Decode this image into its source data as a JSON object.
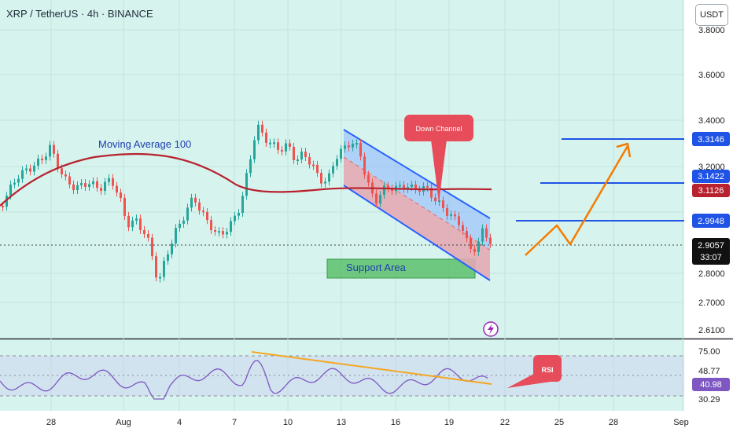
{
  "header": {
    "title": "XRP / TetherUS · 4h · BINANCE"
  },
  "currency_button": "USDT",
  "price_axis": {
    "ticks": [
      "3.8000",
      "3.6000",
      "3.4000",
      "3.2000",
      "2.8000",
      "2.7000",
      "2.6100"
    ],
    "badges": [
      {
        "label": "3.3146",
        "color": "#1e53e5"
      },
      {
        "label": "3.1422",
        "color": "#1e53e5"
      },
      {
        "label": "3.1126",
        "color": "#b7222e"
      },
      {
        "label": "2.9948",
        "color": "#1e53e5"
      },
      {
        "label": "2.9057",
        "color": "#111111"
      },
      {
        "label": "33:07",
        "color": "#111111"
      }
    ]
  },
  "rsi_axis": {
    "ticks": [
      "75.00",
      "48.77",
      "30.29"
    ],
    "badge": {
      "label": "40.98",
      "color": "#7e57c2"
    }
  },
  "time_axis": {
    "labels": [
      "28",
      "Aug",
      "4",
      "7",
      "10",
      "13",
      "16",
      "19",
      "22",
      "25",
      "28",
      "Sep"
    ]
  },
  "annotations": {
    "moving_average": "Moving Average 100",
    "down_channel": "Down Channel",
    "support_area": "Support Area",
    "rsi": "RSI"
  },
  "colors": {
    "up": "#26a69a",
    "down": "#ef5350",
    "ma": "#b7222e",
    "channel": "#2962ff",
    "projection": "#f57c00",
    "rsi_line": "#7e57c2",
    "rsi_trend": "#f5a623"
  },
  "icons": {
    "alert": "lightning-icon"
  }
}
